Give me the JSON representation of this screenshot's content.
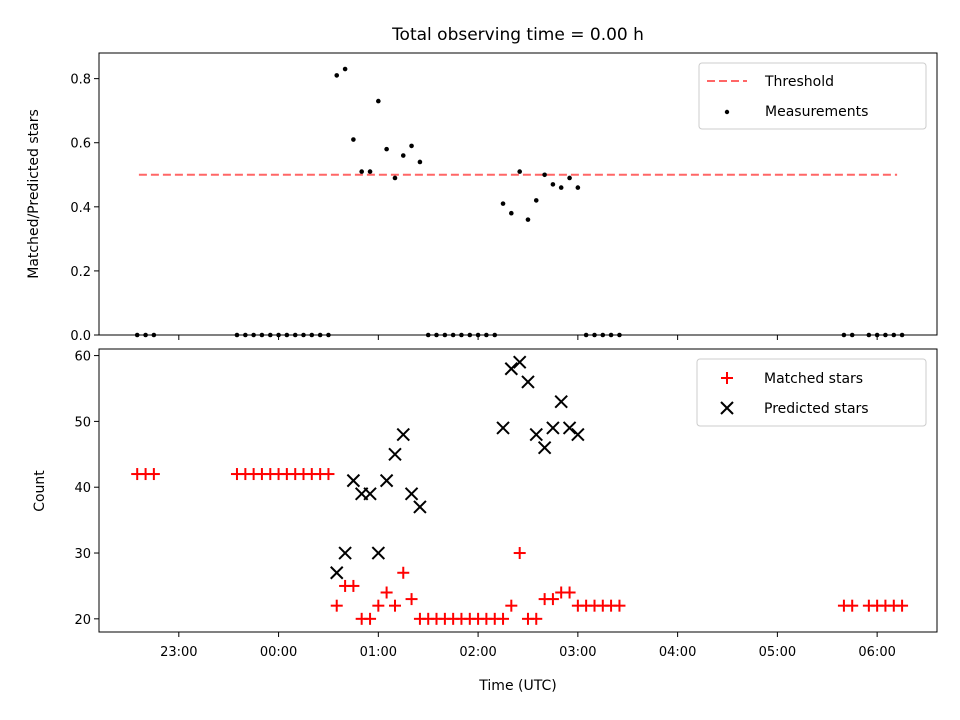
{
  "title": "Total observing time = 0.00 h",
  "chart_data": [
    {
      "type": "scatter",
      "ylabel": "Matched/Predicted stars",
      "ylim": [
        0,
        0.88
      ],
      "yticks": [
        "0.0",
        "0.2",
        "0.4",
        "0.6",
        "0.8"
      ],
      "legend_position": "top-right",
      "threshold": {
        "name": "Threshold",
        "value": 0.5,
        "x_range": [
          22.6,
          30.2
        ],
        "color": "#ff6666"
      },
      "series": [
        {
          "name": "Measurements",
          "color": "#000000",
          "marker": "dot",
          "points": [
            [
              22.583,
              0
            ],
            [
              22.667,
              0
            ],
            [
              22.75,
              0
            ],
            [
              23.583,
              0
            ],
            [
              23.667,
              0
            ],
            [
              23.75,
              0
            ],
            [
              23.833,
              0
            ],
            [
              23.917,
              0
            ],
            [
              24.0,
              0
            ],
            [
              24.083,
              0
            ],
            [
              24.167,
              0
            ],
            [
              24.25,
              0
            ],
            [
              24.333,
              0
            ],
            [
              24.417,
              0
            ],
            [
              24.5,
              0
            ],
            [
              24.583,
              0.81
            ],
            [
              24.667,
              0.83
            ],
            [
              24.75,
              0.61
            ],
            [
              24.833,
              0.51
            ],
            [
              24.917,
              0.51
            ],
            [
              25.0,
              0.73
            ],
            [
              25.083,
              0.58
            ],
            [
              25.167,
              0.49
            ],
            [
              25.25,
              0.56
            ],
            [
              25.333,
              0.59
            ],
            [
              25.417,
              0.54
            ],
            [
              25.5,
              0
            ],
            [
              25.583,
              0
            ],
            [
              25.667,
              0
            ],
            [
              25.75,
              0
            ],
            [
              25.833,
              0
            ],
            [
              25.917,
              0
            ],
            [
              26.0,
              0
            ],
            [
              26.083,
              0
            ],
            [
              26.167,
              0
            ],
            [
              26.25,
              0.41
            ],
            [
              26.333,
              0.38
            ],
            [
              26.417,
              0.51
            ],
            [
              26.5,
              0.36
            ],
            [
              26.583,
              0.42
            ],
            [
              26.667,
              0.5
            ],
            [
              26.75,
              0.47
            ],
            [
              26.833,
              0.46
            ],
            [
              26.917,
              0.49
            ],
            [
              27.0,
              0.46
            ],
            [
              27.083,
              0
            ],
            [
              27.167,
              0
            ],
            [
              27.25,
              0
            ],
            [
              27.333,
              0
            ],
            [
              27.417,
              0
            ],
            [
              29.667,
              0
            ],
            [
              29.75,
              0
            ],
            [
              29.917,
              0
            ],
            [
              30.0,
              0
            ],
            [
              30.083,
              0
            ],
            [
              30.167,
              0
            ],
            [
              30.25,
              0
            ]
          ]
        }
      ]
    },
    {
      "type": "scatter",
      "xlabel": "Time (UTC)",
      "ylabel": "Count",
      "ylim": [
        18,
        61
      ],
      "yticks": [
        "20",
        "30",
        "40",
        "50",
        "60"
      ],
      "xlim": [
        22.2,
        30.6
      ],
      "xticks": [
        {
          "value": 23,
          "label": "23:00"
        },
        {
          "value": 24,
          "label": "00:00"
        },
        {
          "value": 25,
          "label": "01:00"
        },
        {
          "value": 26,
          "label": "02:00"
        },
        {
          "value": 27,
          "label": "03:00"
        },
        {
          "value": 28,
          "label": "04:00"
        },
        {
          "value": 29,
          "label": "05:00"
        },
        {
          "value": 30,
          "label": "06:00"
        }
      ],
      "legend_position": "top-right",
      "series": [
        {
          "name": "Matched stars",
          "color": "#ff0000",
          "marker": "plus",
          "points": [
            [
              22.583,
              42
            ],
            [
              22.667,
              42
            ],
            [
              22.75,
              42
            ],
            [
              23.583,
              42
            ],
            [
              23.667,
              42
            ],
            [
              23.75,
              42
            ],
            [
              23.833,
              42
            ],
            [
              23.917,
              42
            ],
            [
              24.0,
              42
            ],
            [
              24.083,
              42
            ],
            [
              24.167,
              42
            ],
            [
              24.25,
              42
            ],
            [
              24.333,
              42
            ],
            [
              24.417,
              42
            ],
            [
              24.5,
              42
            ],
            [
              24.583,
              22
            ],
            [
              24.667,
              25
            ],
            [
              24.75,
              25
            ],
            [
              24.833,
              20
            ],
            [
              24.917,
              20
            ],
            [
              25.0,
              22
            ],
            [
              25.083,
              24
            ],
            [
              25.167,
              22
            ],
            [
              25.25,
              27
            ],
            [
              25.333,
              23
            ],
            [
              25.417,
              20
            ],
            [
              25.5,
              20
            ],
            [
              25.583,
              20
            ],
            [
              25.667,
              20
            ],
            [
              25.75,
              20
            ],
            [
              25.833,
              20
            ],
            [
              25.917,
              20
            ],
            [
              26.0,
              20
            ],
            [
              26.083,
              20
            ],
            [
              26.167,
              20
            ],
            [
              26.25,
              20
            ],
            [
              26.333,
              22
            ],
            [
              26.417,
              30
            ],
            [
              26.5,
              20
            ],
            [
              26.583,
              20
            ],
            [
              26.667,
              23
            ],
            [
              26.75,
              23
            ],
            [
              26.833,
              24
            ],
            [
              26.917,
              24
            ],
            [
              27.0,
              22
            ],
            [
              27.083,
              22
            ],
            [
              27.167,
              22
            ],
            [
              27.25,
              22
            ],
            [
              27.333,
              22
            ],
            [
              27.417,
              22
            ],
            [
              29.667,
              22
            ],
            [
              29.75,
              22
            ],
            [
              29.917,
              22
            ],
            [
              30.0,
              22
            ],
            [
              30.083,
              22
            ],
            [
              30.167,
              22
            ],
            [
              30.25,
              22
            ]
          ]
        },
        {
          "name": "Predicted stars",
          "color": "#000000",
          "marker": "x",
          "points": [
            [
              24.583,
              27
            ],
            [
              24.667,
              30
            ],
            [
              24.75,
              41
            ],
            [
              24.833,
              39
            ],
            [
              24.917,
              39
            ],
            [
              25.0,
              30
            ],
            [
              25.083,
              41
            ],
            [
              25.167,
              45
            ],
            [
              25.25,
              48
            ],
            [
              25.333,
              39
            ],
            [
              25.417,
              37
            ],
            [
              26.25,
              49
            ],
            [
              26.333,
              58
            ],
            [
              26.417,
              59
            ],
            [
              26.5,
              56
            ],
            [
              26.583,
              48
            ],
            [
              26.667,
              46
            ],
            [
              26.75,
              49
            ],
            [
              26.833,
              53
            ],
            [
              26.917,
              49
            ],
            [
              27.0,
              48
            ]
          ]
        }
      ]
    }
  ]
}
